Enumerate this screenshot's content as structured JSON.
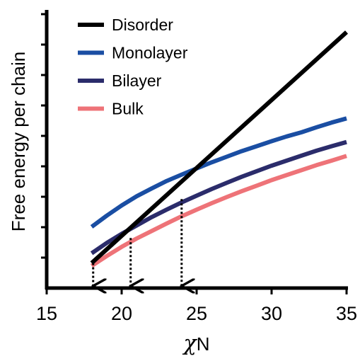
{
  "chart_data": {
    "type": "line",
    "title": "",
    "xlabel": "χN",
    "ylabel": "Free energy per chain",
    "xlim": [
      15,
      35
    ],
    "ylim": [
      0,
      10
    ],
    "xticks": [
      15,
      20,
      25,
      30,
      35
    ],
    "xtick_labels": [
      "15",
      "20",
      "25",
      "30",
      "35"
    ],
    "y_tick_count": 9,
    "y_tick_labels_shown": false,
    "grid": false,
    "legend": {
      "position": "top-left"
    },
    "series": [
      {
        "name": "Disorder",
        "color": "#000000",
        "x": [
          18,
          35
        ],
        "y": [
          0.9,
          9.2
        ]
      },
      {
        "name": "Monolayer",
        "color": "#1a4ea3",
        "x": [
          18,
          19,
          20,
          21,
          22,
          23,
          24,
          25,
          26,
          27,
          28,
          29,
          30,
          31,
          32,
          33,
          34,
          35
        ],
        "y": [
          2.2,
          2.6,
          2.97,
          3.3,
          3.58,
          3.85,
          4.08,
          4.3,
          4.52,
          4.72,
          4.92,
          5.1,
          5.28,
          5.45,
          5.6,
          5.78,
          5.95,
          6.1
        ]
      },
      {
        "name": "Bilayer",
        "color": "#2b2c6b",
        "x": [
          18,
          19,
          20,
          21,
          22,
          23,
          24,
          25,
          26,
          27,
          28,
          29,
          30,
          31,
          32,
          33,
          34,
          35
        ],
        "y": [
          1.25,
          1.62,
          1.95,
          2.25,
          2.55,
          2.82,
          3.08,
          3.32,
          3.56,
          3.78,
          4.0,
          4.2,
          4.4,
          4.58,
          4.76,
          4.94,
          5.1,
          5.25
        ]
      },
      {
        "name": "Bulk",
        "color": "#ee7378",
        "x": [
          18,
          19,
          20,
          21,
          22,
          23,
          24,
          25,
          26,
          27,
          28,
          29,
          30,
          31,
          32,
          33,
          34,
          35
        ],
        "y": [
          0.8,
          1.15,
          1.48,
          1.78,
          2.05,
          2.32,
          2.58,
          2.82,
          3.05,
          3.27,
          3.48,
          3.68,
          3.88,
          4.06,
          4.24,
          4.42,
          4.58,
          4.75
        ]
      }
    ],
    "transitions": [
      {
        "x": 18.1,
        "y": 0.9
      },
      {
        "x": 20.6,
        "y": 1.8
      },
      {
        "x": 24.0,
        "y": 3.2
      }
    ]
  }
}
